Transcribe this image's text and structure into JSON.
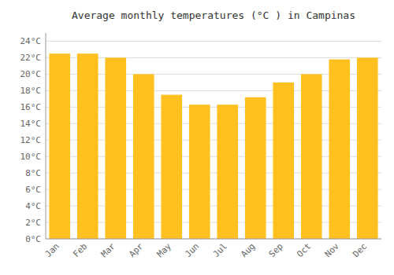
{
  "chart_data": {
    "type": "bar",
    "title": "Average monthly temperatures (°C ) in Campinas",
    "categories": [
      "Jan",
      "Feb",
      "Mar",
      "Apr",
      "May",
      "Jun",
      "Jul",
      "Aug",
      "Sep",
      "Oct",
      "Nov",
      "Dec"
    ],
    "values": [
      22.5,
      22.5,
      22.0,
      20.0,
      17.5,
      16.3,
      16.3,
      17.2,
      19.0,
      20.0,
      21.8,
      22.0
    ],
    "color": "#FFC020",
    "ylim": [
      0,
      25
    ],
    "yticks": [
      {
        "value": 0,
        "label": "0°C"
      },
      {
        "value": 2,
        "label": "2°C"
      },
      {
        "value": 4,
        "label": "4°C"
      },
      {
        "value": 6,
        "label": "6°C"
      },
      {
        "value": 8,
        "label": "8°C"
      },
      {
        "value": 10,
        "label": "10°C"
      },
      {
        "value": 12,
        "label": "12°C"
      },
      {
        "value": 14,
        "label": "14°C"
      },
      {
        "value": 16,
        "label": "16°C"
      },
      {
        "value": 18,
        "label": "18°C"
      },
      {
        "value": 20,
        "label": "20°C"
      },
      {
        "value": 22,
        "label": "22°C"
      },
      {
        "value": 24,
        "label": "24°C"
      }
    ],
    "grid": true
  }
}
